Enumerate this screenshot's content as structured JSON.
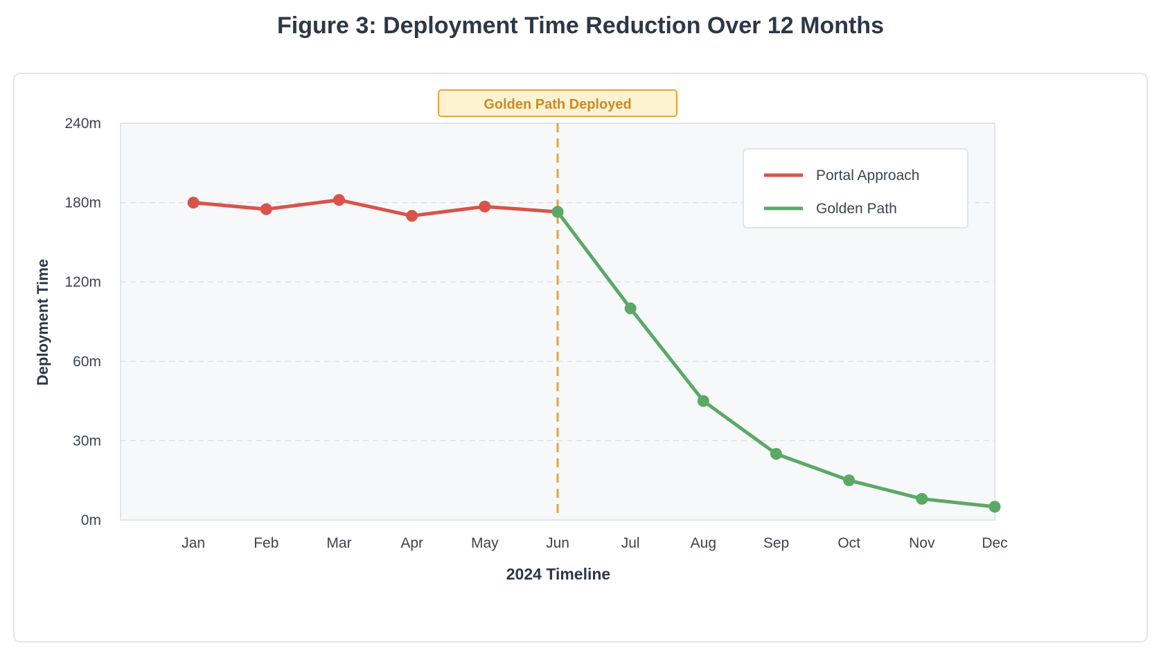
{
  "page": {
    "title": "Figure 3: Deployment Time Reduction Over 12 Months"
  },
  "chart_data": {
    "type": "line",
    "title": "Figure 3: Deployment Time Reduction Over 12 Months",
    "xlabel": "2024 Timeline",
    "ylabel": "Deployment Time",
    "categories": [
      "Jan",
      "Feb",
      "Mar",
      "Apr",
      "May",
      "Jun",
      "Jul",
      "Aug",
      "Sep",
      "Oct",
      "Nov",
      "Dec"
    ],
    "y_ticks": [
      {
        "value": 0,
        "label": "0m"
      },
      {
        "value": 30,
        "label": "30m"
      },
      {
        "value": 60,
        "label": "60m"
      },
      {
        "value": 120,
        "label": "120m"
      },
      {
        "value": 180,
        "label": "180m"
      },
      {
        "value": 240,
        "label": "240m"
      }
    ],
    "ylim": [
      0,
      240
    ],
    "grid": true,
    "legend": "top-right",
    "series": [
      {
        "name": "Portal Approach",
        "color": "#d9534a",
        "x": [
          "Jan",
          "Feb",
          "Mar",
          "Apr",
          "May",
          "Jun"
        ],
        "values": [
          180,
          175,
          182,
          170,
          177,
          173
        ]
      },
      {
        "name": "Golden Path",
        "color": "#5aa965",
        "x": [
          "Jun",
          "Jul",
          "Aug",
          "Sep",
          "Oct",
          "Nov",
          "Dec"
        ],
        "values": [
          173,
          100,
          45,
          25,
          15,
          8,
          5
        ]
      }
    ],
    "annotation": {
      "label": "Golden Path Deployed",
      "x": "Jun",
      "color": "#e6a23c",
      "fill": "#fdf3d0",
      "text_color": "#c98a2a"
    }
  }
}
